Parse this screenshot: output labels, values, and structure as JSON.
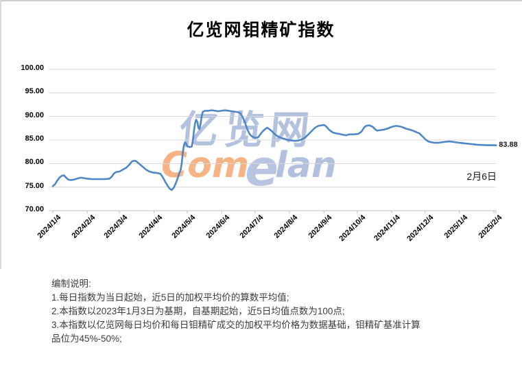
{
  "title": "亿览网钼精矿指数",
  "watermark": {
    "cn": "亿览网",
    "en_left": "Com",
    "en_mid": "e",
    "en_right": "lan"
  },
  "annotations": {
    "last_value_label": "83.88",
    "date_note": "2月6日"
  },
  "footer": {
    "lines": [
      "编制说明:",
      "1.每日指数为当日起始，近5日的加权平均价的算数平均值;",
      "2.本指数以2023年1月3日为基期，自基期起始，近5日均值点数为100点;",
      "3.本指数以亿览网每日均价和每日钼精矿成交的加权平均价格为数据基础，钼精矿基准计算",
      "品位为45%-50%;"
    ]
  },
  "chart_data": {
    "type": "line",
    "title": "亿览网钼精矿指数",
    "xlabel": "",
    "ylabel": "",
    "ylim": [
      70,
      100
    ],
    "grid": true,
    "legend": "none",
    "line_color": "#4f86c6",
    "grid_color": "#d9d9d9",
    "axis_color": "#bfbfbf",
    "y_tick_labels": [
      "100.00",
      "95.00",
      "90.00",
      "85.00",
      "80.00",
      "75.00",
      "70.00"
    ],
    "x_tick_labels": [
      "2024/1/4",
      "2024/2/4",
      "2024/3/4",
      "2024/4/4",
      "2024/5/4",
      "2024/6/4",
      "2024/7/4",
      "2024/8/4",
      "2024/9/4",
      "2024/10/4",
      "2024/11/4",
      "2024/12/4",
      "2025/1/4",
      "2025/2/4"
    ],
    "last_point": {
      "date": "2025/2/6",
      "value": 83.88
    },
    "points": [
      [
        "2024/1/4",
        75.2
      ],
      [
        "2024/1/6",
        75.6
      ],
      [
        "2024/1/8",
        76.4
      ],
      [
        "2024/1/10",
        77.0
      ],
      [
        "2024/1/12",
        77.4
      ],
      [
        "2024/1/14",
        77.5
      ],
      [
        "2024/1/16",
        77.0
      ],
      [
        "2024/1/18",
        76.6
      ],
      [
        "2024/1/20",
        76.5
      ],
      [
        "2024/1/23",
        76.6
      ],
      [
        "2024/1/26",
        76.8
      ],
      [
        "2024/1/29",
        77.0
      ],
      [
        "2024/2/1",
        76.9
      ],
      [
        "2024/2/4",
        76.8
      ],
      [
        "2024/2/8",
        76.7
      ],
      [
        "2024/2/12",
        76.7
      ],
      [
        "2024/2/16",
        76.7
      ],
      [
        "2024/2/20",
        76.7
      ],
      [
        "2024/2/24",
        76.8
      ],
      [
        "2024/2/26",
        77.2
      ],
      [
        "2024/2/28",
        77.9
      ],
      [
        "2024/3/1",
        78.2
      ],
      [
        "2024/3/4",
        78.3
      ],
      [
        "2024/3/7",
        78.7
      ],
      [
        "2024/3/10",
        79.1
      ],
      [
        "2024/3/13",
        79.8
      ],
      [
        "2024/3/15",
        80.4
      ],
      [
        "2024/3/17",
        80.6
      ],
      [
        "2024/3/19",
        80.5
      ],
      [
        "2024/3/22",
        79.9
      ],
      [
        "2024/3/25",
        79.3
      ],
      [
        "2024/3/28",
        78.7
      ],
      [
        "2024/3/31",
        78.3
      ],
      [
        "2024/4/3",
        78.1
      ],
      [
        "2024/4/7",
        78.0
      ],
      [
        "2024/4/10",
        77.8
      ],
      [
        "2024/4/12",
        77.1
      ],
      [
        "2024/4/14",
        76.2
      ],
      [
        "2024/4/16",
        75.4
      ],
      [
        "2024/4/18",
        74.7
      ],
      [
        "2024/4/20",
        74.4
      ],
      [
        "2024/4/22",
        74.9
      ],
      [
        "2024/4/24",
        76.0
      ],
      [
        "2024/4/26",
        77.3
      ],
      [
        "2024/4/27",
        78.1
      ],
      [
        "2024/4/28",
        78.6
      ],
      [
        "2024/4/29",
        80.0
      ],
      [
        "2024/4/30",
        82.3
      ],
      [
        "2024/5/1",
        83.9
      ],
      [
        "2024/5/2",
        84.5
      ],
      [
        "2024/5/3",
        84.2
      ],
      [
        "2024/5/4",
        83.7
      ],
      [
        "2024/5/6",
        83.5
      ],
      [
        "2024/5/8",
        83.6
      ],
      [
        "2024/5/9",
        84.8
      ],
      [
        "2024/5/10",
        86.8
      ],
      [
        "2024/5/11",
        88.5
      ],
      [
        "2024/5/12",
        89.3
      ],
      [
        "2024/5/13",
        88.9
      ],
      [
        "2024/5/14",
        87.6
      ],
      [
        "2024/5/15",
        87.3
      ],
      [
        "2024/5/16",
        88.4
      ],
      [
        "2024/5/17",
        90.0
      ],
      [
        "2024/5/18",
        91.0
      ],
      [
        "2024/5/20",
        91.2
      ],
      [
        "2024/5/23",
        91.2
      ],
      [
        "2024/5/26",
        91.3
      ],
      [
        "2024/5/29",
        91.2
      ],
      [
        "2024/6/1",
        91.1
      ],
      [
        "2024/6/4",
        91.2
      ],
      [
        "2024/6/7",
        91.3
      ],
      [
        "2024/6/10",
        91.2
      ],
      [
        "2024/6/13",
        91.1
      ],
      [
        "2024/6/16",
        91.0
      ],
      [
        "2024/6/19",
        90.9
      ],
      [
        "2024/6/21",
        90.6
      ],
      [
        "2024/6/23",
        89.8
      ],
      [
        "2024/6/25",
        88.7
      ],
      [
        "2024/6/27",
        87.3
      ],
      [
        "2024/6/29",
        86.3
      ],
      [
        "2024/7/1",
        85.8
      ],
      [
        "2024/7/4",
        85.4
      ],
      [
        "2024/7/7",
        85.6
      ],
      [
        "2024/7/10",
        86.6
      ],
      [
        "2024/7/13",
        87.3
      ],
      [
        "2024/7/15",
        87.6
      ],
      [
        "2024/7/17",
        87.3
      ],
      [
        "2024/7/19",
        86.9
      ],
      [
        "2024/7/22",
        86.2
      ],
      [
        "2024/7/25",
        85.7
      ],
      [
        "2024/7/28",
        85.4
      ],
      [
        "2024/7/31",
        85.2
      ],
      [
        "2024/8/3",
        85.0
      ],
      [
        "2024/8/6",
        84.9
      ],
      [
        "2024/8/9",
        84.8
      ],
      [
        "2024/8/12",
        84.9
      ],
      [
        "2024/8/15",
        85.1
      ],
      [
        "2024/8/18",
        85.5
      ],
      [
        "2024/8/21",
        86.2
      ],
      [
        "2024/8/24",
        86.9
      ],
      [
        "2024/8/27",
        87.6
      ],
      [
        "2024/8/30",
        88.0
      ],
      [
        "2024/9/2",
        88.1
      ],
      [
        "2024/9/4",
        88.2
      ],
      [
        "2024/9/6",
        87.9
      ],
      [
        "2024/9/9",
        87.1
      ],
      [
        "2024/9/12",
        86.6
      ],
      [
        "2024/9/15",
        86.4
      ],
      [
        "2024/9/18",
        86.3
      ],
      [
        "2024/9/21",
        86.1
      ],
      [
        "2024/9/24",
        86.0
      ],
      [
        "2024/9/27",
        86.2
      ],
      [
        "2024/10/1",
        86.2
      ],
      [
        "2024/10/5",
        86.3
      ],
      [
        "2024/10/8",
        86.8
      ],
      [
        "2024/10/10",
        87.6
      ],
      [
        "2024/10/12",
        88.0
      ],
      [
        "2024/10/15",
        88.1
      ],
      [
        "2024/10/18",
        87.8
      ],
      [
        "2024/10/20",
        87.3
      ],
      [
        "2024/10/22",
        87.0
      ],
      [
        "2024/10/25",
        87.1
      ],
      [
        "2024/10/28",
        87.2
      ],
      [
        "2024/10/31",
        87.4
      ],
      [
        "2024/11/3",
        87.7
      ],
      [
        "2024/11/6",
        87.9
      ],
      [
        "2024/11/8",
        88.0
      ],
      [
        "2024/11/11",
        87.9
      ],
      [
        "2024/11/14",
        87.7
      ],
      [
        "2024/11/17",
        87.4
      ],
      [
        "2024/11/20",
        87.2
      ],
      [
        "2024/11/23",
        87.0
      ],
      [
        "2024/11/26",
        86.7
      ],
      [
        "2024/11/29",
        86.4
      ],
      [
        "2024/12/2",
        85.7
      ],
      [
        "2024/12/5",
        85.0
      ],
      [
        "2024/12/7",
        84.7
      ],
      [
        "2024/12/10",
        84.5
      ],
      [
        "2024/12/13",
        84.4
      ],
      [
        "2024/12/16",
        84.4
      ],
      [
        "2024/12/19",
        84.5
      ],
      [
        "2024/12/22",
        84.6
      ],
      [
        "2024/12/26",
        84.7
      ],
      [
        "2024/12/29",
        84.6
      ],
      [
        "2025/1/1",
        84.5
      ],
      [
        "2025/1/4",
        84.4
      ],
      [
        "2025/1/8",
        84.3
      ],
      [
        "2025/1/12",
        84.2
      ],
      [
        "2025/1/16",
        84.1
      ],
      [
        "2025/1/20",
        84.0
      ],
      [
        "2025/1/24",
        83.95
      ],
      [
        "2025/1/28",
        83.9
      ],
      [
        "2025/2/1",
        83.9
      ],
      [
        "2025/2/4",
        83.88
      ],
      [
        "2025/2/6",
        83.88
      ]
    ]
  }
}
